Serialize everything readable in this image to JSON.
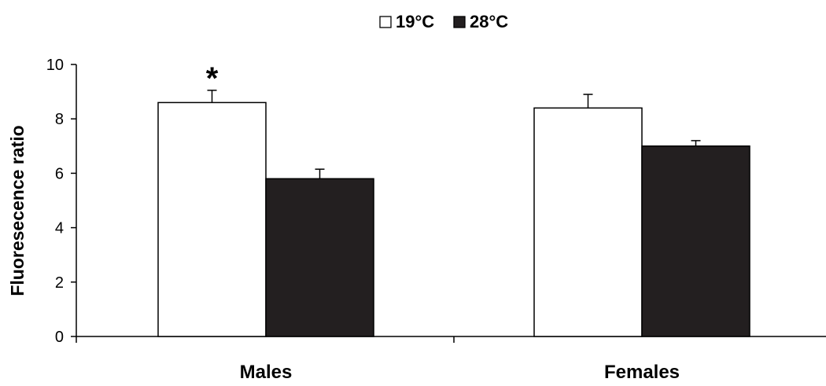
{
  "chart_data": {
    "type": "bar",
    "title": "",
    "xlabel": "",
    "ylabel": "Fluoresecence ratio",
    "ylim": [
      0,
      10
    ],
    "yticks": [
      0,
      2,
      4,
      6,
      8,
      10
    ],
    "categories": [
      "Males",
      "Females"
    ],
    "series": [
      {
        "name": "19°C",
        "values": [
          8.6,
          8.4
        ],
        "errors": [
          0.45,
          0.5
        ],
        "fill": "#ffffff",
        "stroke": "#000000"
      },
      {
        "name": "28°C",
        "values": [
          5.8,
          7.0
        ],
        "errors": [
          0.35,
          0.2
        ],
        "fill": "#231f20",
        "stroke": "#000000"
      }
    ],
    "legend_position": "top-center",
    "grid": false,
    "annotations": [
      {
        "text": "*",
        "category": "Males",
        "series": "19°C"
      }
    ]
  }
}
